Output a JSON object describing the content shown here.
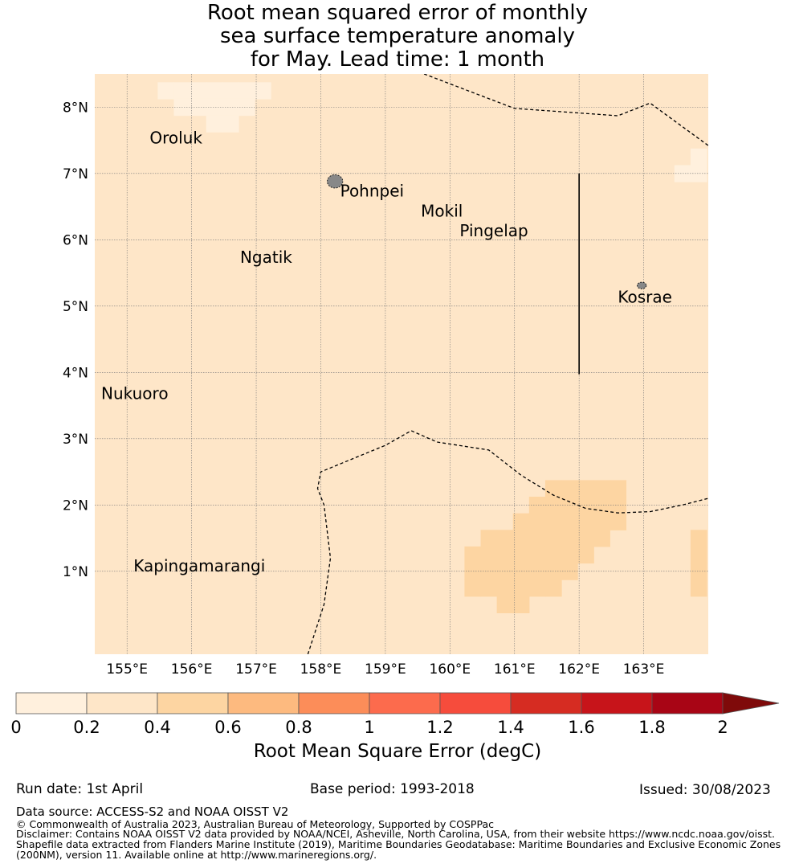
{
  "title": {
    "line1": "Root mean squared error of monthly",
    "line2": "sea surface temperature anomaly",
    "line3": "for May. Lead time: 1 month"
  },
  "map": {
    "lon_range": [
      154.5,
      164.0
    ],
    "lat_range": [
      -0.25,
      8.5
    ],
    "lat_ticks": [
      {
        "value": 1,
        "label": "1°N"
      },
      {
        "value": 2,
        "label": "2°N"
      },
      {
        "value": 3,
        "label": "3°N"
      },
      {
        "value": 4,
        "label": "4°N"
      },
      {
        "value": 5,
        "label": "5°N"
      },
      {
        "value": 6,
        "label": "6°N"
      },
      {
        "value": 7,
        "label": "7°N"
      },
      {
        "value": 8,
        "label": "8°N"
      }
    ],
    "lon_ticks": [
      {
        "value": 155,
        "label": "155°E"
      },
      {
        "value": 156,
        "label": "156°E"
      },
      {
        "value": 157,
        "label": "157°E"
      },
      {
        "value": 158,
        "label": "158°E"
      },
      {
        "value": 159,
        "label": "159°E"
      },
      {
        "value": 160,
        "label": "160°E"
      },
      {
        "value": 161,
        "label": "161°E"
      },
      {
        "value": 162,
        "label": "162°E"
      },
      {
        "value": 163,
        "label": "163°E"
      }
    ],
    "background_bin_color": "#fee6c8",
    "bin_colors": {
      "low": "#fff0dd",
      "mid": "#fdd5a2"
    },
    "low_error_cells": [
      [
        155.6,
        8.25
      ],
      [
        155.85,
        8.25
      ],
      [
        156.1,
        8.25
      ],
      [
        156.35,
        8.25
      ],
      [
        156.6,
        8.25
      ],
      [
        156.85,
        8.25
      ],
      [
        157.1,
        8.25
      ],
      [
        155.85,
        8.0
      ],
      [
        156.1,
        8.0
      ],
      [
        156.35,
        8.0
      ],
      [
        156.6,
        8.0
      ],
      [
        156.85,
        8.0
      ],
      [
        156.35,
        7.75
      ],
      [
        156.6,
        7.75
      ],
      [
        163.85,
        7.25
      ],
      [
        163.6,
        7.0
      ],
      [
        163.85,
        7.0
      ]
    ],
    "mid_error_cells": [
      [
        161.6,
        2.25
      ],
      [
        161.85,
        2.25
      ],
      [
        162.1,
        2.25
      ],
      [
        162.35,
        2.25
      ],
      [
        162.6,
        2.25
      ],
      [
        161.35,
        2.0
      ],
      [
        161.6,
        2.0
      ],
      [
        161.85,
        2.0
      ],
      [
        162.1,
        2.0
      ],
      [
        162.35,
        2.0
      ],
      [
        162.6,
        2.0
      ],
      [
        161.1,
        1.75
      ],
      [
        161.35,
        1.75
      ],
      [
        161.6,
        1.75
      ],
      [
        161.85,
        1.75
      ],
      [
        162.1,
        1.75
      ],
      [
        162.35,
        1.75
      ],
      [
        162.6,
        1.75
      ],
      [
        160.6,
        1.5
      ],
      [
        160.85,
        1.5
      ],
      [
        161.1,
        1.5
      ],
      [
        161.35,
        1.5
      ],
      [
        161.6,
        1.5
      ],
      [
        161.85,
        1.5
      ],
      [
        162.1,
        1.5
      ],
      [
        162.35,
        1.5
      ],
      [
        160.35,
        1.25
      ],
      [
        160.6,
        1.25
      ],
      [
        160.85,
        1.25
      ],
      [
        161.1,
        1.25
      ],
      [
        161.35,
        1.25
      ],
      [
        161.6,
        1.25
      ],
      [
        161.85,
        1.25
      ],
      [
        162.1,
        1.25
      ],
      [
        160.35,
        1.0
      ],
      [
        160.6,
        1.0
      ],
      [
        160.85,
        1.0
      ],
      [
        161.1,
        1.0
      ],
      [
        161.35,
        1.0
      ],
      [
        161.6,
        1.0
      ],
      [
        161.85,
        1.0
      ],
      [
        160.35,
        0.75
      ],
      [
        160.6,
        0.75
      ],
      [
        160.85,
        0.75
      ],
      [
        161.1,
        0.75
      ],
      [
        161.35,
        0.75
      ],
      [
        161.6,
        0.75
      ],
      [
        160.85,
        0.5
      ],
      [
        161.1,
        0.5
      ],
      [
        163.85,
        1.5
      ],
      [
        163.85,
        1.25
      ],
      [
        163.85,
        1.0
      ],
      [
        163.85,
        0.75
      ]
    ],
    "places": [
      {
        "name": "Oroluk",
        "lon": 155.35,
        "lat": 7.45
      },
      {
        "name": "Pohnpei",
        "lon": 158.3,
        "lat": 6.65
      },
      {
        "name": "Mokil",
        "lon": 159.55,
        "lat": 6.35
      },
      {
        "name": "Pingelap",
        "lon": 160.15,
        "lat": 6.05
      },
      {
        "name": "Ngatik",
        "lon": 156.75,
        "lat": 5.65
      },
      {
        "name": "Kosrae",
        "lon": 162.6,
        "lat": 5.05
      },
      {
        "name": "Nukuoro",
        "lon": 154.6,
        "lat": 3.6
      },
      {
        "name": "Kapingamarangi",
        "lon": 155.1,
        "lat": 1.0
      }
    ],
    "islands": [
      {
        "name": "Pohnpei",
        "lon": 158.22,
        "lat": 6.88,
        "rx": 0.12,
        "ry": 0.1
      },
      {
        "name": "Kosrae",
        "lon": 162.97,
        "lat": 5.31,
        "rx": 0.07,
        "ry": 0.05
      }
    ],
    "eez_boundaries": [
      [
        [
          159.6,
          8.5
        ],
        [
          161.0,
          7.98
        ],
        [
          162.6,
          7.87
        ],
        [
          163.1,
          8.06
        ],
        [
          164.0,
          7.42
        ]
      ],
      [
        [
          157.8,
          -0.25
        ],
        [
          158.05,
          0.5
        ],
        [
          158.15,
          1.2
        ],
        [
          158.05,
          2.0
        ],
        [
          157.95,
          2.25
        ],
        [
          158.0,
          2.5
        ],
        [
          158.5,
          2.7
        ],
        [
          159.0,
          2.9
        ],
        [
          159.4,
          3.12
        ],
        [
          159.8,
          2.95
        ],
        [
          160.6,
          2.83
        ],
        [
          161.1,
          2.45
        ],
        [
          161.6,
          2.15
        ],
        [
          162.1,
          1.95
        ],
        [
          162.6,
          1.88
        ],
        [
          163.1,
          1.9
        ],
        [
          163.6,
          2.0
        ],
        [
          164.0,
          2.1
        ]
      ]
    ],
    "vertical_line": {
      "lon": 162.0,
      "lat_from": 3.97,
      "lat_to": 7.0
    }
  },
  "colorbar": {
    "ticks": [
      "0",
      "0.2",
      "0.4",
      "0.6",
      "0.8",
      "1",
      "1.2",
      "1.4",
      "1.6",
      "1.8",
      "2"
    ],
    "colors": [
      "#fff0dd",
      "#fee6c8",
      "#fdd5a2",
      "#fdba7f",
      "#fc8d59",
      "#fc6b4d",
      "#f64c3c",
      "#d62c22",
      "#c7141a",
      "#a80515"
    ],
    "extend_color": "#7f0a0a",
    "label": "Root Mean Square Error (degC)"
  },
  "footer": {
    "run_date": "Run date: 1st April",
    "base_period": "Base period: 1993-2018",
    "issued": "Issued: 30/08/2023",
    "data_source": "Data source: ACCESS-S2 and NOAA OISST V2",
    "copyright": "© Commonwealth of Australia 2023, Australian Bureau of Meteorology, Supported by COSPPac",
    "disclaimer": [
      "Disclaimer: Contains NOAA OISST V2 data provided by NOAA/NCEI, Asheville, North Carolina, USA, from their website https://www.ncdc.noaa.gov/oisst.",
      "Shapefile data extracted from Flanders Marine Institute (2019), Maritime Boundaries Geodatabase: Maritime Boundaries and Exclusive Economic Zones",
      "(200NM), version 11. Available online at http://www.marineregions.org/."
    ]
  }
}
